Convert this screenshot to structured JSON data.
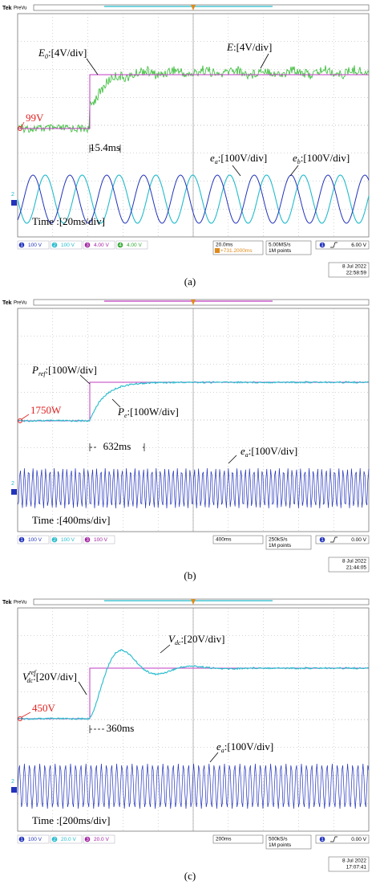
{
  "panels": [
    {
      "caption": "(a)",
      "header": {
        "brand": "Tek",
        "mode": "PreVu"
      },
      "annotations": [
        "99V",
        "15.4ms"
      ],
      "labels": [
        {
          "base": "E",
          "sub": "0",
          "rest": ":[4V/div]"
        },
        {
          "base": "E",
          "rest": ":[4V/div]"
        },
        {
          "base": "e",
          "sub": "a",
          "rest": ":[100V/div]"
        },
        {
          "base": "e",
          "sub": "b",
          "rest": ":[100V/div]"
        }
      ],
      "timebase": "Time :[20ms/div]",
      "channels": [
        {
          "num": "1",
          "scale": "100 V"
        },
        {
          "num": "2",
          "scale": "100 V"
        },
        {
          "num": "3",
          "scale": "4.00 V"
        },
        {
          "num": "4",
          "scale": "4.00 V"
        }
      ],
      "horizontal": {
        "scale": "20.0ms",
        "position": "+731.2000ms",
        "rate": "5.00MS/s",
        "points": "1M points"
      },
      "trigger": {
        "channel": "1",
        "level": "6.00 V"
      },
      "date": "8 Jul  2022",
      "time": "22:58:59"
    },
    {
      "caption": "(b)",
      "header": {
        "brand": "Tek",
        "mode": "PreVu"
      },
      "annotations": [
        "1750W",
        "632ms"
      ],
      "labels": [
        {
          "base": "P",
          "sub": "ref",
          "rest": ":[100W/div]"
        },
        {
          "base": "P",
          "sub": "e",
          "rest": ":[100W/div]"
        },
        {
          "base": "e",
          "sub": "a",
          "rest": ":[100V/div]"
        }
      ],
      "timebase": "Time :[400ms/div]",
      "channels": [
        {
          "num": "1",
          "scale": "100 V"
        },
        {
          "num": "2",
          "scale": "100 V"
        },
        {
          "num": "3",
          "scale": "100 V"
        }
      ],
      "horizontal": {
        "scale": "400ms",
        "rate": "250kS/s",
        "points": "1M points"
      },
      "trigger": {
        "channel": "1",
        "level": "0.00 V"
      },
      "date": "8 Jul  2022",
      "time": "21:44:05"
    },
    {
      "caption": "(c)",
      "header": {
        "brand": "Tek",
        "mode": "PreVu"
      },
      "annotations": [
        "450V",
        "360ms"
      ],
      "labels": [
        {
          "base": "V",
          "sub": "dc",
          "sup": "ref",
          "rest": ":[20V/div]"
        },
        {
          "base": "V",
          "sub": "dc",
          "rest": ":[20V/div]"
        },
        {
          "base": "e",
          "sub": "a",
          "rest": ":[100V/div]"
        }
      ],
      "timebase": "Time :[200ms/div]",
      "channels": [
        {
          "num": "1",
          "scale": "100 V"
        },
        {
          "num": "2",
          "scale": "20.0 V"
        },
        {
          "num": "3",
          "scale": "20.0 V"
        }
      ],
      "horizontal": {
        "scale": "200ms",
        "rate": "500kS/s",
        "points": "1M points"
      },
      "trigger": {
        "channel": "1",
        "level": "0.00 V"
      },
      "date": "8 Jul  2022",
      "time": "17:07:41"
    }
  ]
}
